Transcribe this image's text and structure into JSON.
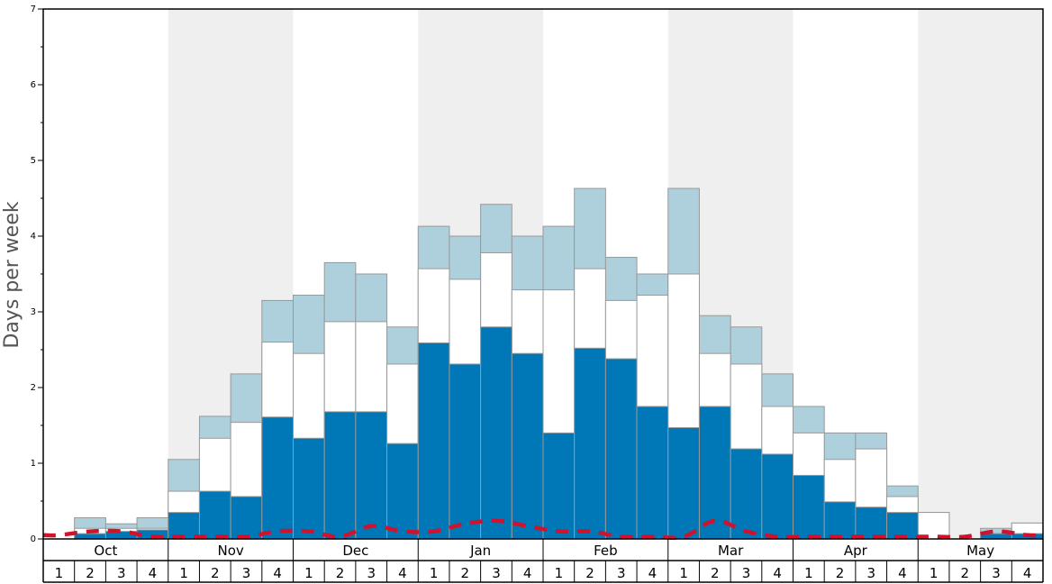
{
  "chart_data": {
    "type": "bar",
    "ylabel": "Days per week",
    "ylim": [
      0,
      7
    ],
    "y_ticks": [
      "0",
      "1",
      "2",
      "3",
      "4",
      "5",
      "6",
      "7"
    ],
    "months": [
      "Oct",
      "Nov",
      "Dec",
      "Jan",
      "Feb",
      "Mar",
      "Apr",
      "May"
    ],
    "weeks": [
      "1",
      "2",
      "3",
      "4"
    ],
    "stacked": false,
    "series": [
      {
        "name": "",
        "color": "#aed0dc",
        "values": [
          0,
          0.28,
          0.2,
          0.28,
          1.05,
          1.62,
          2.18,
          3.15,
          3.22,
          3.65,
          3.5,
          2.8,
          4.13,
          4.0,
          4.42,
          4.0,
          4.13,
          4.63,
          3.72,
          3.5,
          4.63,
          2.95,
          2.8,
          2.18,
          1.75,
          1.4,
          1.4,
          0.7,
          0.35,
          0,
          0.14,
          0.21
        ]
      },
      {
        "name": "",
        "color": "#ffffff",
        "values": [
          0,
          0.14,
          0.14,
          0.14,
          0.63,
          1.33,
          1.54,
          2.6,
          2.45,
          2.87,
          2.87,
          2.31,
          3.57,
          3.43,
          3.78,
          3.29,
          3.29,
          3.57,
          3.15,
          3.22,
          3.5,
          2.45,
          2.31,
          1.75,
          1.4,
          1.05,
          1.19,
          0.56,
          0.35,
          0,
          0.07,
          0.21
        ]
      },
      {
        "name": "",
        "color": "#0077b6",
        "values": [
          0,
          0.07,
          0.1,
          0.12,
          0.35,
          0.63,
          0.56,
          1.61,
          1.33,
          1.68,
          1.68,
          1.26,
          2.59,
          2.31,
          2.8,
          2.45,
          1.4,
          2.52,
          2.38,
          1.75,
          1.47,
          1.75,
          1.19,
          1.12,
          0.84,
          0.49,
          0.42,
          0.35,
          0,
          0,
          0.07,
          0.07
        ]
      },
      {
        "name": "",
        "color": "#d0122c",
        "style": "dashed-line",
        "values": [
          0.05,
          0.1,
          0.1,
          0.03,
          0.03,
          0.03,
          0.03,
          0.1,
          0.1,
          0.03,
          0.17,
          0.1,
          0.1,
          0.2,
          0.24,
          0.17,
          0.1,
          0.1,
          0.03,
          0.03,
          0.03,
          0.24,
          0.1,
          0.03,
          0.03,
          0.03,
          0.03,
          0.03,
          0.03,
          0.03,
          0.1,
          0.05
        ]
      }
    ],
    "grid": false,
    "background_bands": "alternating months shaded light gray (Nov, Jan, Mar, May)",
    "band_color": "#efefef"
  }
}
